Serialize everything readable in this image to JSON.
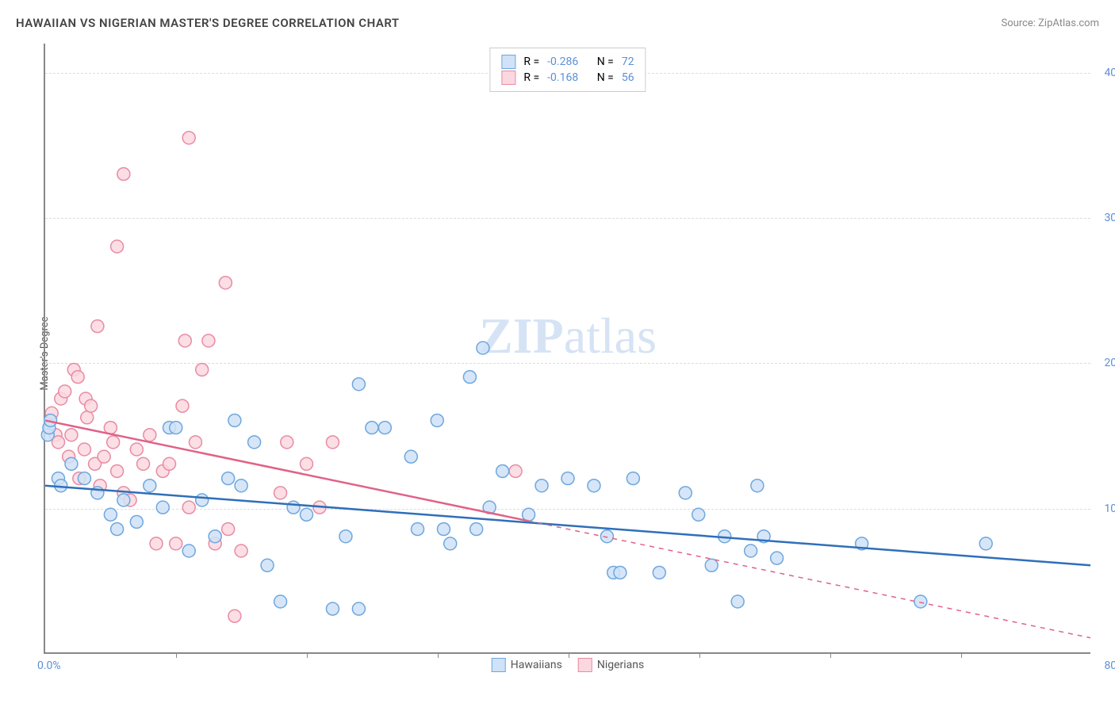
{
  "title": "HAWAIIAN VS NIGERIAN MASTER'S DEGREE CORRELATION CHART",
  "source_label": "Source: ZipAtlas.com",
  "ylabel": "Master's Degree",
  "watermark": {
    "zip": "ZIP",
    "atlas": "atlas"
  },
  "chart": {
    "type": "scatter",
    "background_color": "#ffffff",
    "grid_color": "#dddddd",
    "axis_color": "#888888",
    "xlim": [
      0,
      80
    ],
    "ylim": [
      0,
      42
    ],
    "x_tick_step": 10,
    "y_tick_step": 10,
    "x_tick_start_label": "0.0%",
    "x_tick_end_label": "80.0%",
    "y_tick_labels": [
      "10.0%",
      "20.0%",
      "30.0%",
      "40.0%"
    ],
    "y_tick_color": "#5b8fd6",
    "x_tick_color": "#5b8fd6",
    "marker_radius": 8,
    "marker_stroke_width": 1.5,
    "line_width": 2.5
  },
  "series": [
    {
      "name": "Hawaiians",
      "color_fill": "#cfe2f7",
      "color_stroke": "#6ea7de",
      "line_color": "#2f6fb9",
      "R": "-0.286",
      "N": "72",
      "trend": {
        "x1": 0,
        "y1": 11.5,
        "x2": 80,
        "y2": 6.0,
        "dashed_from_x": 80
      },
      "points": [
        [
          0.2,
          15.0
        ],
        [
          0.3,
          15.5
        ],
        [
          0.4,
          16.0
        ],
        [
          1.0,
          12.0
        ],
        [
          1.2,
          11.5
        ],
        [
          24.0,
          18.5
        ],
        [
          33.5,
          21.0
        ],
        [
          32.5,
          19.0
        ],
        [
          2.0,
          13.0
        ],
        [
          3.0,
          12.0
        ],
        [
          4.0,
          11.0
        ],
        [
          14.5,
          16.0
        ],
        [
          5.0,
          9.5
        ],
        [
          5.5,
          8.5
        ],
        [
          6.0,
          10.5
        ],
        [
          7.0,
          9.0
        ],
        [
          8.0,
          11.5
        ],
        [
          9.0,
          10.0
        ],
        [
          9.5,
          15.5
        ],
        [
          10.0,
          15.5
        ],
        [
          11.0,
          7.0
        ],
        [
          12.0,
          10.5
        ],
        [
          13.0,
          8.0
        ],
        [
          14.0,
          12.0
        ],
        [
          15.0,
          11.5
        ],
        [
          16.0,
          14.5
        ],
        [
          17.0,
          6.0
        ],
        [
          18.0,
          3.5
        ],
        [
          19.0,
          10.0
        ],
        [
          20.0,
          9.5
        ],
        [
          22.0,
          3.0
        ],
        [
          23.0,
          8.0
        ],
        [
          24.0,
          3.0
        ],
        [
          25.0,
          15.5
        ],
        [
          26.0,
          15.5
        ],
        [
          28.0,
          13.5
        ],
        [
          28.5,
          8.5
        ],
        [
          30.0,
          16.0
        ],
        [
          30.5,
          8.5
        ],
        [
          31.0,
          7.5
        ],
        [
          33.0,
          8.5
        ],
        [
          34.0,
          10.0
        ],
        [
          35.0,
          12.5
        ],
        [
          37.0,
          9.5
        ],
        [
          38.0,
          11.5
        ],
        [
          40.0,
          12.0
        ],
        [
          42.0,
          11.5
        ],
        [
          43.0,
          8.0
        ],
        [
          43.5,
          5.5
        ],
        [
          44.0,
          5.5
        ],
        [
          45.0,
          12.0
        ],
        [
          47.0,
          5.5
        ],
        [
          49.0,
          11.0
        ],
        [
          50.0,
          9.5
        ],
        [
          51.0,
          6.0
        ],
        [
          52.0,
          8.0
        ],
        [
          53.0,
          3.5
        ],
        [
          54.0,
          7.0
        ],
        [
          54.5,
          11.5
        ],
        [
          55.0,
          8.0
        ],
        [
          56.0,
          6.5
        ],
        [
          67.0,
          3.5
        ],
        [
          62.5,
          7.5
        ],
        [
          72.0,
          7.5
        ]
      ]
    },
    {
      "name": "Nigerians",
      "color_fill": "#fbd8e0",
      "color_stroke": "#e88ba2",
      "line_color": "#e06287",
      "R": "-0.168",
      "N": "56",
      "trend": {
        "x1": 0,
        "y1": 16.0,
        "x2": 80,
        "y2": 1.0,
        "dashed_from_x": 37
      },
      "points": [
        [
          0.5,
          16.5
        ],
        [
          0.8,
          15.0
        ],
        [
          1.0,
          14.5
        ],
        [
          1.2,
          17.5
        ],
        [
          1.5,
          18.0
        ],
        [
          5.5,
          28.0
        ],
        [
          1.8,
          13.5
        ],
        [
          2.0,
          15.0
        ],
        [
          2.2,
          19.5
        ],
        [
          2.5,
          19.0
        ],
        [
          6.0,
          33.0
        ],
        [
          2.6,
          12.0
        ],
        [
          3.0,
          14.0
        ],
        [
          3.1,
          17.5
        ],
        [
          3.2,
          16.2
        ],
        [
          3.5,
          17.0
        ],
        [
          3.8,
          13.0
        ],
        [
          4.0,
          22.5
        ],
        [
          4.2,
          11.5
        ],
        [
          4.5,
          13.5
        ],
        [
          5.0,
          15.5
        ],
        [
          5.2,
          14.5
        ],
        [
          5.5,
          12.5
        ],
        [
          6.0,
          11.0
        ],
        [
          6.5,
          10.5
        ],
        [
          7.0,
          14.0
        ],
        [
          7.5,
          13.0
        ],
        [
          8.0,
          15.0
        ],
        [
          8.5,
          7.5
        ],
        [
          9.0,
          12.5
        ],
        [
          9.5,
          13.0
        ],
        [
          10.0,
          7.5
        ],
        [
          10.5,
          17.0
        ],
        [
          10.7,
          21.5
        ],
        [
          11.0,
          10.0
        ],
        [
          11.0,
          35.5
        ],
        [
          11.5,
          14.5
        ],
        [
          12.0,
          19.5
        ],
        [
          12.5,
          21.5
        ],
        [
          13.0,
          7.5
        ],
        [
          13.8,
          25.5
        ],
        [
          14.0,
          8.5
        ],
        [
          14.5,
          2.5
        ],
        [
          15.0,
          7.0
        ],
        [
          18.5,
          14.5
        ],
        [
          18.0,
          11.0
        ],
        [
          20.0,
          13.0
        ],
        [
          21.0,
          10.0
        ],
        [
          22.0,
          14.5
        ],
        [
          36.0,
          12.5
        ]
      ]
    }
  ],
  "legend_top": {
    "r_label": "R =",
    "n_label": "N =",
    "value_color": "#5b8fd6",
    "label_color": "#555555"
  },
  "legend_bottom_labels": [
    "Hawaiians",
    "Nigerians"
  ]
}
